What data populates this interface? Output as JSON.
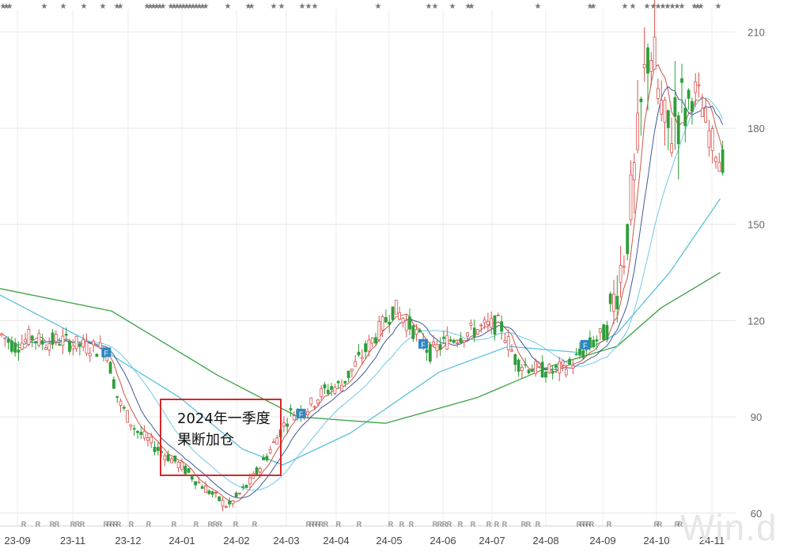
{
  "chart_data": {
    "type": "candlestick",
    "title": "",
    "xlabel": "",
    "ylabel": "",
    "ylim": [
      56,
      217
    ],
    "y_ticks": [
      60,
      90,
      120,
      150,
      180,
      210
    ],
    "x_ticks": [
      "23-09",
      "23-11",
      "23-12",
      "24-01",
      "24-02",
      "24-03",
      "24-04",
      "24-05",
      "24-06",
      "24-07",
      "24-08",
      "24-09",
      "24-10",
      "24-11"
    ],
    "grid": true,
    "colors": {
      "up": "#d9534f",
      "down": "#2e9e3a",
      "ma_short": "#c0392b",
      "ma_mid": "#1f3c88",
      "ma_long1": "#5bc0de",
      "ma_long2": "#3aa241"
    },
    "close_series": {
      "name": "",
      "x": [
        "23-09",
        "23-10",
        "23-11",
        "23-12",
        "24-01",
        "24-02",
        "24-03",
        "24-04",
        "24-05",
        "24-06",
        "24-07",
        "24-08",
        "24-09",
        "24-10",
        "24-11"
      ],
      "values": [
        114,
        115,
        112,
        84,
        73,
        65,
        88,
        103,
        122,
        113,
        117,
        104,
        121,
        188,
        170
      ],
      "milestones": [
        {
          "date": "23-09-01",
          "close": 116
        },
        {
          "date": "23-09-15",
          "close": 112
        },
        {
          "date": "23-10-01",
          "close": 115
        },
        {
          "date": "23-10-15",
          "close": 113
        },
        {
          "date": "23-11-01",
          "close": 114
        },
        {
          "date": "23-11-15",
          "close": 112
        },
        {
          "date": "23-11-28",
          "close": 111
        },
        {
          "date": "23-12-05",
          "close": 95
        },
        {
          "date": "23-12-15",
          "close": 86
        },
        {
          "date": "23-12-28",
          "close": 80
        },
        {
          "date": "24-01-10",
          "close": 75
        },
        {
          "date": "24-01-20",
          "close": 70
        },
        {
          "date": "24-01-31",
          "close": 65
        },
        {
          "date": "24-02-07",
          "close": 62
        },
        {
          "date": "24-02-20",
          "close": 70
        },
        {
          "date": "24-02-29",
          "close": 78
        },
        {
          "date": "24-03-08",
          "close": 85
        },
        {
          "date": "24-03-15",
          "close": 91
        },
        {
          "date": "24-03-25",
          "close": 92
        },
        {
          "date": "24-04-05",
          "close": 98
        },
        {
          "date": "24-04-15",
          "close": 100
        },
        {
          "date": "24-04-25",
          "close": 108
        },
        {
          "date": "24-05-05",
          "close": 116
        },
        {
          "date": "24-05-15",
          "close": 124
        },
        {
          "date": "24-05-25",
          "close": 118
        },
        {
          "date": "24-06-05",
          "close": 110
        },
        {
          "date": "24-06-15",
          "close": 114
        },
        {
          "date": "24-06-25",
          "close": 116
        },
        {
          "date": "24-07-05",
          "close": 118
        },
        {
          "date": "24-07-15",
          "close": 119
        },
        {
          "date": "24-07-25",
          "close": 107
        },
        {
          "date": "24-08-05",
          "close": 105
        },
        {
          "date": "24-08-15",
          "close": 104
        },
        {
          "date": "24-08-25",
          "close": 106
        },
        {
          "date": "24-09-05",
          "close": 112
        },
        {
          "date": "24-09-15",
          "close": 117
        },
        {
          "date": "24-09-25",
          "close": 145
        },
        {
          "date": "24-09-30",
          "close": 168
        },
        {
          "date": "24-10-08",
          "close": 209
        },
        {
          "date": "24-10-12",
          "close": 195
        },
        {
          "date": "24-10-18",
          "close": 176
        },
        {
          "date": "24-10-24",
          "close": 185
        },
        {
          "date": "24-10-31",
          "close": 188
        },
        {
          "date": "24-11-05",
          "close": 192
        },
        {
          "date": "24-11-12",
          "close": 178
        },
        {
          "date": "24-11-18",
          "close": 170
        }
      ]
    },
    "moving_averages": [
      {
        "name": "",
        "color": "#5bc0de",
        "points": [
          [
            "23-09-01",
            128
          ],
          [
            "23-11-20",
            113
          ],
          [
            "24-01-10",
            96
          ],
          [
            "24-02-15",
            80
          ],
          [
            "24-03-10",
            75
          ],
          [
            "24-04-20",
            85
          ],
          [
            "24-06-10",
            104
          ],
          [
            "24-07-20",
            112
          ],
          [
            "24-09-01",
            110
          ],
          [
            "24-09-20",
            116
          ],
          [
            "24-10-20",
            135
          ],
          [
            "24-11-18",
            158
          ]
        ]
      },
      {
        "name": "",
        "color": "#3aa241",
        "points": [
          [
            "23-09-01",
            130
          ],
          [
            "23-12-01",
            123
          ],
          [
            "24-02-01",
            103
          ],
          [
            "24-03-20",
            90
          ],
          [
            "24-05-10",
            88
          ],
          [
            "24-07-01",
            96
          ],
          [
            "24-08-15",
            106
          ],
          [
            "24-09-20",
            112
          ],
          [
            "24-10-15",
            124
          ],
          [
            "24-11-18",
            135
          ]
        ]
      }
    ],
    "annotation": {
      "line1": "2024年一季度",
      "line2": "果断加仓"
    },
    "event_marker_label": "F",
    "event_markers": [
      "23-11-28",
      "24-03-22",
      "24-06-01",
      "24-09-03"
    ],
    "top_marker_symbol": "★",
    "bottom_marker_symbol": "R",
    "watermark": "Win.d"
  }
}
